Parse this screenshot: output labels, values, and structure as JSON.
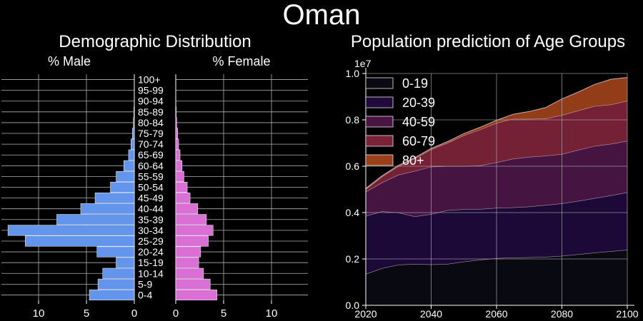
{
  "title": "Oman",
  "colors": {
    "background": "#000000",
    "male": "#6495ED",
    "female": "#DA70D6",
    "grid": "#b0b0b0",
    "area": [
      "#0a0a12",
      "#1f0a3a",
      "#4a1545",
      "#7a2238",
      "#9a4018"
    ]
  },
  "chart_data": [
    {
      "type": "bar",
      "subtype": "population-pyramid",
      "title": "Demographic Distribution",
      "left_label": "% Male",
      "right_label": "% Female",
      "categories": [
        "0-4",
        "5-9",
        "10-14",
        "15-19",
        "20-24",
        "25-29",
        "30-34",
        "35-39",
        "40-44",
        "45-49",
        "50-54",
        "55-59",
        "60-64",
        "65-69",
        "70-74",
        "75-79",
        "80-84",
        "85-89",
        "90-94",
        "95-99",
        "100+"
      ],
      "xticks": [
        "10",
        "5",
        "0"
      ],
      "xticks_right": [
        "0",
        "5",
        "10"
      ],
      "xlim": [
        0,
        14
      ],
      "series": [
        {
          "name": "% Male",
          "values": [
            4.7,
            3.8,
            3.3,
            1.9,
            3.9,
            11.4,
            13.2,
            8.1,
            5.6,
            4.1,
            2.5,
            1.9,
            1.1,
            0.6,
            0.35,
            0.2,
            0.1,
            0.05,
            0.02,
            0.01,
            0.0
          ]
        },
        {
          "name": "% Female",
          "values": [
            4.3,
            3.6,
            2.9,
            2.4,
            2.6,
            3.4,
            3.9,
            3.2,
            2.3,
            1.5,
            1.2,
            0.85,
            0.65,
            0.45,
            0.3,
            0.2,
            0.1,
            0.05,
            0.02,
            0.01,
            0.0
          ]
        }
      ]
    },
    {
      "type": "area",
      "stacked": true,
      "title": "Population prediction of Age Groups",
      "y_multiplier": "1e7",
      "x": [
        2020,
        2025,
        2030,
        2035,
        2040,
        2045,
        2050,
        2055,
        2060,
        2065,
        2070,
        2075,
        2080,
        2085,
        2090,
        2095,
        2100
      ],
      "xticks": [
        "2020",
        "2040",
        "2060",
        "2080",
        "2100"
      ],
      "yticks": [
        "0.0",
        "0.2",
        "0.4",
        "0.6",
        "0.8",
        "1.0"
      ],
      "xlim": [
        2020,
        2100
      ],
      "ylim": [
        0,
        1.0
      ],
      "grid": true,
      "legend_position": "top-left",
      "series": [
        {
          "name": "0-19",
          "values": [
            0.135,
            0.16,
            0.175,
            0.178,
            0.176,
            0.178,
            0.188,
            0.196,
            0.203,
            0.206,
            0.207,
            0.209,
            0.213,
            0.22,
            0.227,
            0.233,
            0.239
          ]
        },
        {
          "name": "20-39",
          "values": [
            0.25,
            0.245,
            0.225,
            0.205,
            0.217,
            0.232,
            0.226,
            0.219,
            0.217,
            0.216,
            0.219,
            0.223,
            0.226,
            0.23,
            0.235,
            0.241,
            0.248
          ]
        },
        {
          "name": "40-59",
          "values": [
            0.104,
            0.125,
            0.163,
            0.196,
            0.205,
            0.19,
            0.186,
            0.188,
            0.196,
            0.21,
            0.214,
            0.213,
            0.213,
            0.22,
            0.225,
            0.222,
            0.222
          ]
        },
        {
          "name": "60-79",
          "values": [
            0.012,
            0.025,
            0.037,
            0.054,
            0.074,
            0.1,
            0.133,
            0.155,
            0.17,
            0.172,
            0.164,
            0.16,
            0.168,
            0.17,
            0.172,
            0.17,
            0.173
          ]
        },
        {
          "name": "80+",
          "values": [
            0.003,
            0.004,
            0.004,
            0.004,
            0.005,
            0.006,
            0.008,
            0.01,
            0.012,
            0.02,
            0.032,
            0.048,
            0.07,
            0.08,
            0.094,
            0.109,
            0.101
          ]
        }
      ]
    }
  ]
}
